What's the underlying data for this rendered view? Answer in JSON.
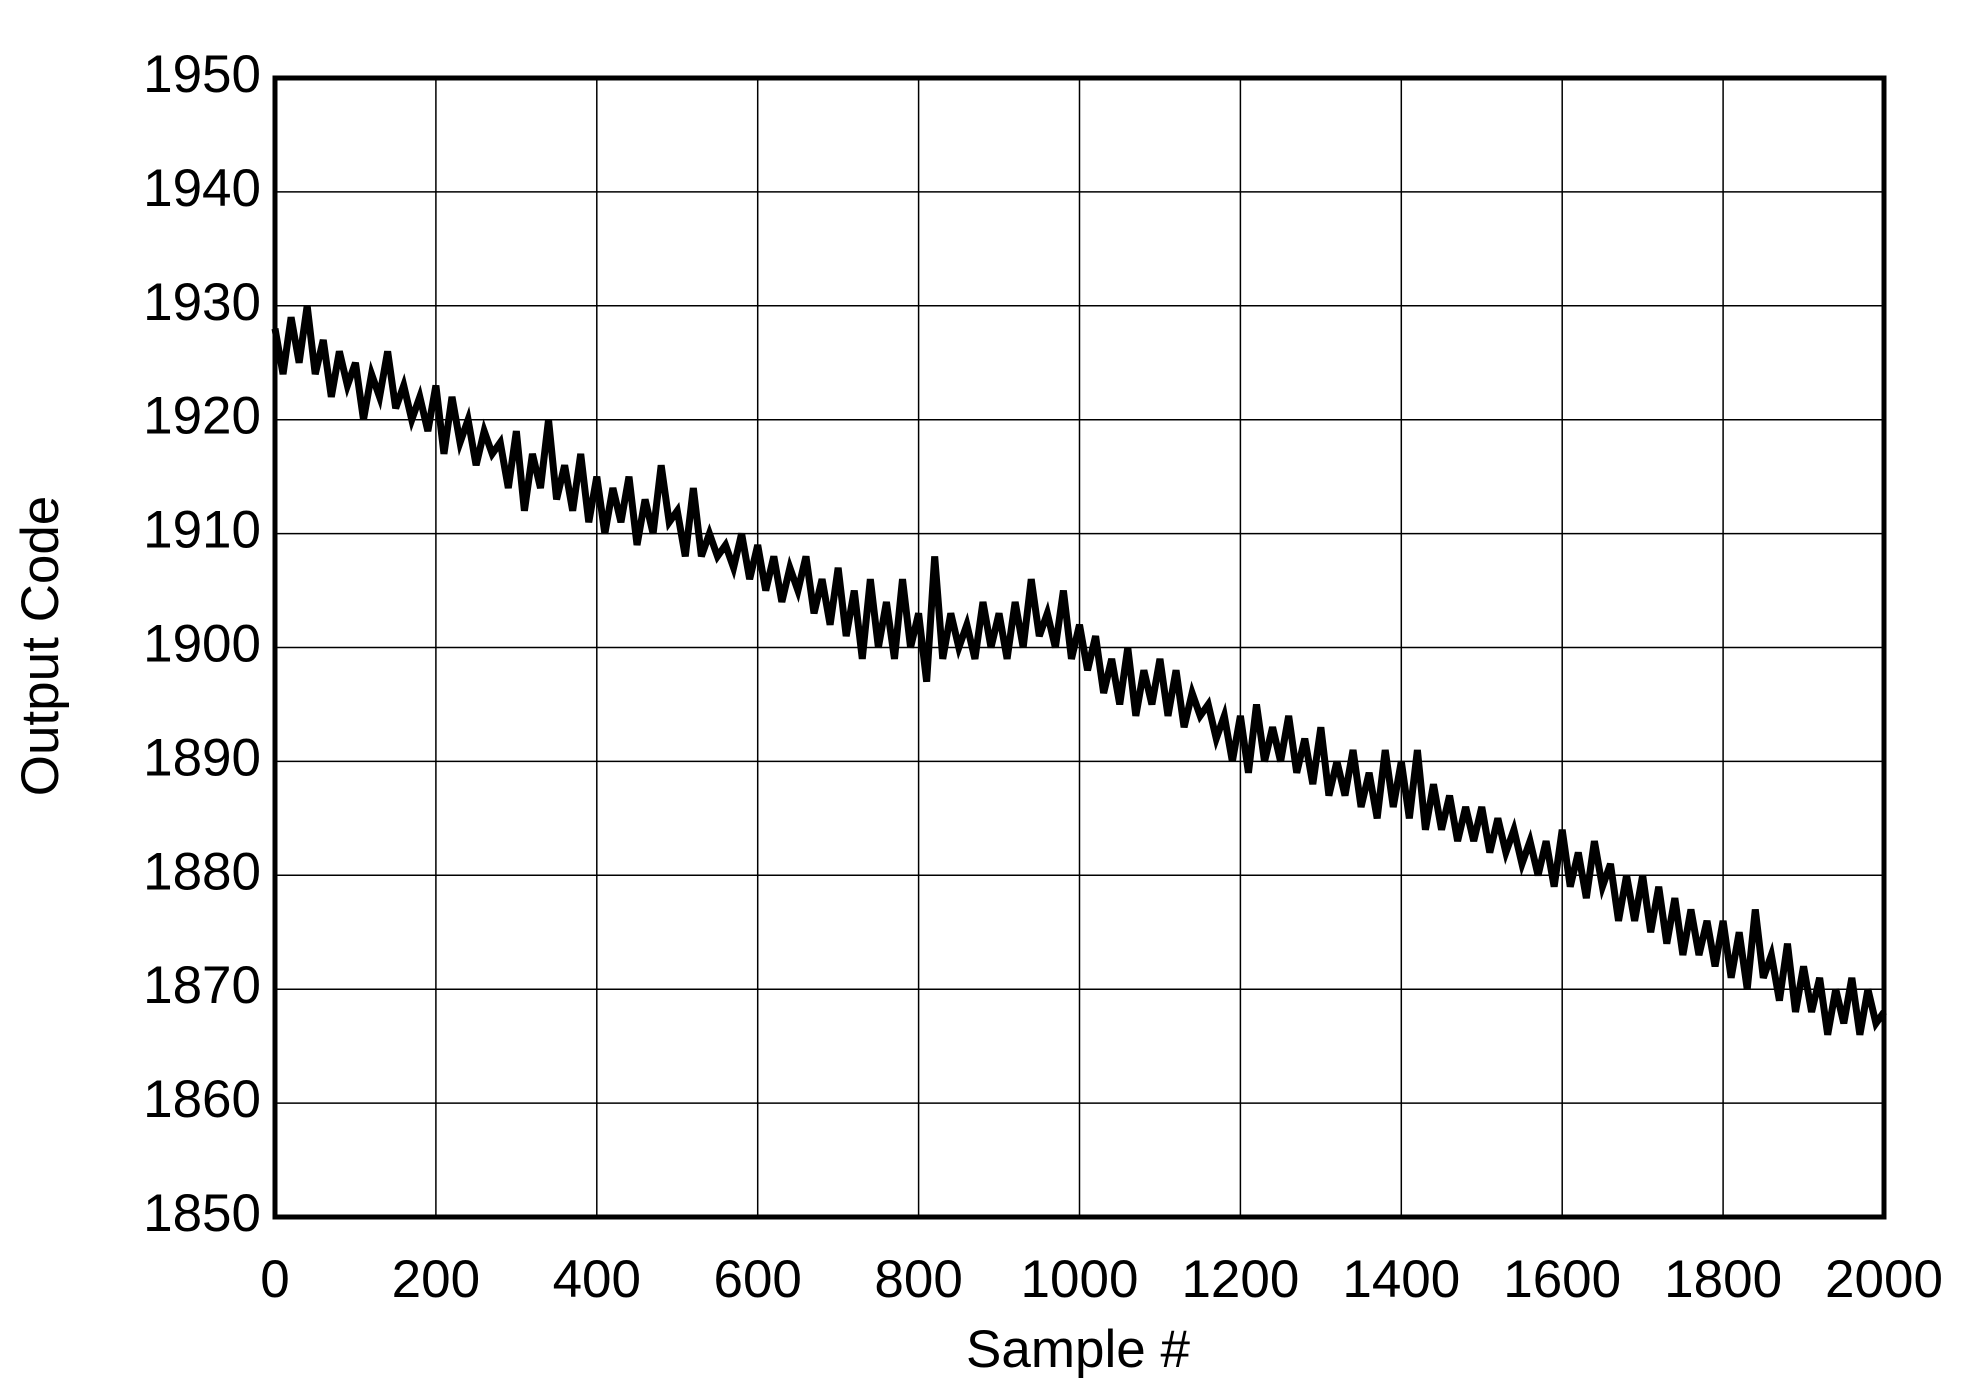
{
  "chart_data": {
    "type": "line",
    "xlabel": "Sample #",
    "ylabel": "Output Code",
    "x": [
      0,
      10,
      20,
      30,
      40,
      50,
      60,
      70,
      80,
      90,
      100,
      110,
      120,
      130,
      140,
      150,
      160,
      170,
      180,
      190,
      200,
      210,
      220,
      230,
      240,
      250,
      260,
      270,
      280,
      290,
      300,
      310,
      320,
      330,
      340,
      350,
      360,
      370,
      380,
      390,
      400,
      410,
      420,
      430,
      440,
      450,
      460,
      470,
      480,
      490,
      500,
      510,
      520,
      530,
      540,
      550,
      560,
      570,
      580,
      590,
      600,
      610,
      620,
      630,
      640,
      650,
      660,
      670,
      680,
      690,
      700,
      710,
      720,
      730,
      740,
      750,
      760,
      770,
      780,
      790,
      800,
      810,
      820,
      830,
      840,
      850,
      860,
      870,
      880,
      890,
      900,
      910,
      920,
      930,
      940,
      950,
      960,
      970,
      980,
      990,
      1000,
      1010,
      1020,
      1030,
      1040,
      1050,
      1060,
      1070,
      1080,
      1090,
      1100,
      1110,
      1120,
      1130,
      1140,
      1150,
      1160,
      1170,
      1180,
      1190,
      1200,
      1210,
      1220,
      1230,
      1240,
      1250,
      1260,
      1270,
      1280,
      1290,
      1300,
      1310,
      1320,
      1330,
      1340,
      1350,
      1360,
      1370,
      1380,
      1390,
      1400,
      1410,
      1420,
      1430,
      1440,
      1450,
      1460,
      1470,
      1480,
      1490,
      1500,
      1510,
      1520,
      1530,
      1540,
      1550,
      1560,
      1570,
      1580,
      1590,
      1600,
      1610,
      1620,
      1630,
      1640,
      1650,
      1660,
      1670,
      1680,
      1690,
      1700,
      1710,
      1720,
      1730,
      1740,
      1750,
      1760,
      1770,
      1780,
      1790,
      1800,
      1810,
      1820,
      1830,
      1840,
      1850,
      1860,
      1870,
      1880,
      1890,
      1900,
      1910,
      1920,
      1930,
      1940,
      1950,
      1960,
      1970,
      1980,
      1990,
      2000
    ],
    "series": [
      {
        "name": "Output Code",
        "color": "#000000",
        "values": [
          1928,
          1924,
          1929,
          1925,
          1930,
          1924,
          1927,
          1922,
          1926,
          1923,
          1925,
          1920,
          1924,
          1922,
          1926,
          1921,
          1923,
          1920,
          1922,
          1919,
          1923,
          1917,
          1922,
          1918,
          1920,
          1916,
          1919,
          1917,
          1918,
          1914,
          1919,
          1912,
          1917,
          1914,
          1920,
          1913,
          1916,
          1912,
          1917,
          1911,
          1915,
          1910,
          1914,
          1911,
          1915,
          1909,
          1913,
          1910,
          1916,
          1911,
          1912,
          1908,
          1914,
          1908,
          1910,
          1908,
          1909,
          1907,
          1910,
          1906,
          1909,
          1905,
          1908,
          1904,
          1907,
          1905,
          1908,
          1903,
          1906,
          1902,
          1907,
          1901,
          1905,
          1899,
          1906,
          1900,
          1904,
          1899,
          1906,
          1900,
          1903,
          1897,
          1908,
          1899,
          1903,
          1900,
          1902,
          1899,
          1904,
          1900,
          1903,
          1899,
          1904,
          1900,
          1906,
          1901,
          1903,
          1900,
          1905,
          1899,
          1902,
          1898,
          1901,
          1896,
          1899,
          1895,
          1900,
          1894,
          1898,
          1895,
          1899,
          1894,
          1898,
          1893,
          1896,
          1894,
          1895,
          1892,
          1894,
          1890,
          1894,
          1889,
          1895,
          1890,
          1893,
          1890,
          1894,
          1889,
          1892,
          1888,
          1893,
          1887,
          1890,
          1887,
          1891,
          1886,
          1889,
          1885,
          1891,
          1886,
          1890,
          1885,
          1891,
          1884,
          1888,
          1884,
          1887,
          1883,
          1886,
          1883,
          1886,
          1882,
          1885,
          1882,
          1884,
          1881,
          1883,
          1880,
          1883,
          1879,
          1884,
          1879,
          1882,
          1878,
          1883,
          1879,
          1881,
          1876,
          1880,
          1876,
          1880,
          1875,
          1879,
          1874,
          1878,
          1873,
          1877,
          1873,
          1876,
          1872,
          1876,
          1871,
          1875,
          1870,
          1877,
          1871,
          1873,
          1869,
          1874,
          1868,
          1872,
          1868,
          1871,
          1866,
          1870,
          1867,
          1871,
          1866,
          1870,
          1867,
          1868
        ]
      }
    ],
    "xlim": [
      0,
      2000
    ],
    "ylim": [
      1850,
      1950
    ],
    "xticks": [
      0,
      200,
      400,
      600,
      800,
      1000,
      1200,
      1400,
      1600,
      1800,
      2000
    ],
    "yticks": [
      1850,
      1860,
      1870,
      1880,
      1890,
      1900,
      1910,
      1920,
      1930,
      1940,
      1950
    ],
    "grid": true
  }
}
